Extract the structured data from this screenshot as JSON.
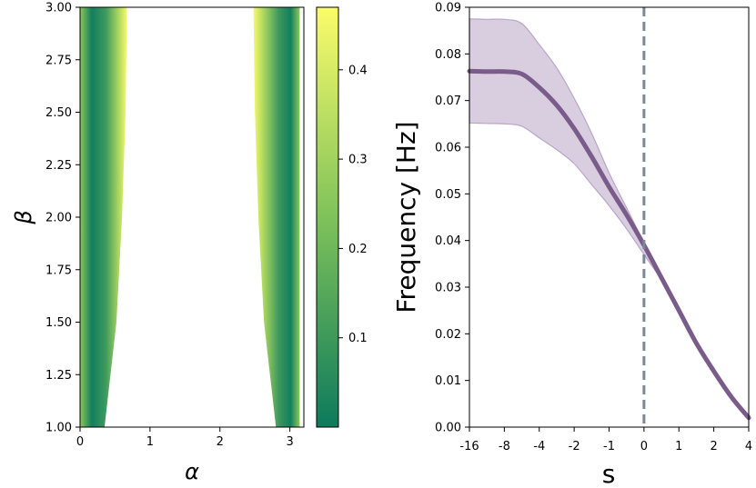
{
  "colors": {
    "colormap_low": "#0d7a5c",
    "colormap_mid": "#7fc25a",
    "colormap_high": "#fbfc6b",
    "band_fill": "#d9cde0",
    "band_edge": "#b9a6c6",
    "line": "#7a5c8b",
    "vline": "#7a869a"
  },
  "chart_data": [
    {
      "type": "heatmap",
      "xlabel": "α",
      "ylabel": "β",
      "xlim": [
        0,
        3.2
      ],
      "ylim": [
        1.0,
        3.0
      ],
      "xticks": [
        "0",
        "1",
        "2",
        "3"
      ],
      "yticks": [
        "1.00",
        "1.25",
        "1.50",
        "1.75",
        "2.00",
        "2.25",
        "2.50",
        "2.75",
        "3.00"
      ],
      "colorbar": {
        "ticks": [
          "0.1",
          "0.2",
          "0.3",
          "0.4"
        ],
        "range": [
          0.0,
          0.47
        ]
      },
      "regions": [
        {
          "name": "left",
          "alpha_at_beta": [
            [
              1.0,
              0.0,
              0.35
            ],
            [
              1.5,
              0.0,
              0.52
            ],
            [
              2.0,
              0.0,
              0.6
            ],
            [
              2.5,
              0.0,
              0.65
            ],
            [
              3.0,
              0.0,
              0.67
            ]
          ]
        },
        {
          "name": "right",
          "alpha_at_beta": [
            [
              1.0,
              2.8,
              3.14
            ],
            [
              1.5,
              2.63,
              3.14
            ],
            [
              2.0,
              2.55,
              3.14
            ],
            [
              2.5,
              2.5,
              3.14
            ],
            [
              3.0,
              2.48,
              3.14
            ]
          ]
        }
      ]
    },
    {
      "type": "line",
      "xlabel": "s",
      "ylabel": "Frequency [Hz]",
      "xticks": [
        "-16",
        "-8",
        "-4",
        "-2",
        "-1",
        "0",
        "1",
        "2",
        "4"
      ],
      "ylim": [
        0.0,
        0.09
      ],
      "yticks": [
        "0.00",
        "0.01",
        "0.02",
        "0.03",
        "0.04",
        "0.05",
        "0.06",
        "0.07",
        "0.08",
        "0.09"
      ],
      "vline_at_tick": 5,
      "x": [
        0,
        0.5,
        1,
        1.5,
        2,
        2.5,
        3,
        3.5,
        4,
        4.5,
        5,
        5.5,
        6,
        6.5,
        7,
        7.5,
        8
      ],
      "mean": [
        0.0763,
        0.0762,
        0.0762,
        0.0757,
        0.0728,
        0.069,
        0.064,
        0.058,
        0.0515,
        0.0455,
        0.039,
        0.032,
        0.025,
        0.018,
        0.012,
        0.0065,
        0.002
      ],
      "upper": [
        0.0875,
        0.0874,
        0.0874,
        0.0865,
        0.082,
        0.077,
        0.0705,
        0.063,
        0.0545,
        0.047,
        0.0395,
        0.0322,
        0.0251,
        0.018,
        0.012,
        0.0065,
        0.002
      ],
      "lower": [
        0.0652,
        0.0651,
        0.065,
        0.0645,
        0.062,
        0.0595,
        0.0565,
        0.052,
        0.0475,
        0.0425,
        0.037,
        0.0315,
        0.0249,
        0.018,
        0.012,
        0.0065,
        0.002
      ]
    }
  ]
}
